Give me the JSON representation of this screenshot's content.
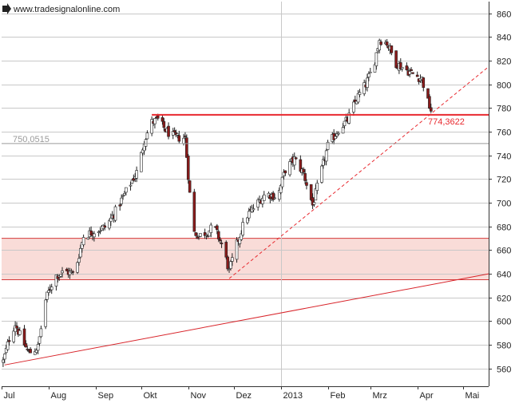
{
  "watermark": {
    "icon": "arrow-right-icon",
    "text": "www.tradesignalonline.com"
  },
  "chart_data": {
    "type": "candlestick",
    "ylim": [
      545,
      870
    ],
    "yticks": [
      560,
      580,
      600,
      620,
      640,
      660,
      680,
      700,
      720,
      740,
      760,
      780,
      800,
      820,
      840,
      860
    ],
    "x_start": "2012-07-01",
    "x_end": "2013-05-18",
    "month_ticks": [
      {
        "label": "Jul",
        "date": "2012-07-01"
      },
      {
        "label": "Aug",
        "date": "2012-08-01"
      },
      {
        "label": "Sep",
        "date": "2012-09-01"
      },
      {
        "label": "Okt",
        "date": "2012-10-01"
      },
      {
        "label": "Nov",
        "date": "2012-11-01"
      },
      {
        "label": "Dez",
        "date": "2012-12-01"
      },
      {
        "label": "2013",
        "date": "2013-01-01"
      },
      {
        "label": "Feb",
        "date": "2013-02-01"
      },
      {
        "label": "Mrz",
        "date": "2013-03-01"
      },
      {
        "label": "Apr",
        "date": "2013-04-01"
      },
      {
        "label": "Mai",
        "date": "2013-05-01"
      }
    ],
    "close_path": [
      [
        "2012-07-02",
        566
      ],
      [
        "2012-07-06",
        585
      ],
      [
        "2012-07-10",
        598
      ],
      [
        "2012-07-14",
        585
      ],
      [
        "2012-07-19",
        573
      ],
      [
        "2012-07-25",
        578
      ],
      [
        "2012-07-30",
        618
      ],
      [
        "2012-08-05",
        638
      ],
      [
        "2012-08-12",
        642
      ],
      [
        "2012-08-18",
        640
      ],
      [
        "2012-08-24",
        672
      ],
      [
        "2012-08-31",
        676
      ],
      [
        "2012-09-08",
        680
      ],
      [
        "2012-09-15",
        695
      ],
      [
        "2012-09-22",
        712
      ],
      [
        "2012-09-29",
        728
      ],
      [
        "2012-10-03",
        753
      ],
      [
        "2012-10-08",
        768
      ],
      [
        "2012-10-12",
        770
      ],
      [
        "2012-10-18",
        760
      ],
      [
        "2012-10-24",
        755
      ],
      [
        "2012-10-30",
        755
      ],
      [
        "2012-11-04",
        676
      ],
      [
        "2012-11-08",
        672
      ],
      [
        "2012-11-14",
        676
      ],
      [
        "2012-11-18",
        680
      ],
      [
        "2012-11-24",
        662
      ],
      [
        "2012-11-28",
        642
      ],
      [
        "2012-12-03",
        665
      ],
      [
        "2012-12-09",
        688
      ],
      [
        "2012-12-15",
        697
      ],
      [
        "2012-12-22",
        708
      ],
      [
        "2012-12-30",
        705
      ],
      [
        "2013-01-04",
        728
      ],
      [
        "2013-01-10",
        737
      ],
      [
        "2013-01-16",
        725
      ],
      [
        "2013-01-22",
        698
      ],
      [
        "2013-02-01",
        748
      ],
      [
        "2013-02-08",
        762
      ],
      [
        "2013-02-14",
        770
      ],
      [
        "2013-02-20",
        788
      ],
      [
        "2013-02-26",
        800
      ],
      [
        "2013-03-03",
        815
      ],
      [
        "2013-03-07",
        838
      ],
      [
        "2013-03-12",
        835
      ],
      [
        "2013-03-18",
        818
      ],
      [
        "2013-03-24",
        813
      ],
      [
        "2013-03-30",
        808
      ],
      [
        "2013-04-04",
        805
      ],
      [
        "2013-04-08",
        785
      ],
      [
        "2013-04-10",
        778
      ]
    ],
    "levels": [
      {
        "value": 774.3622,
        "label": "774,3622",
        "color": "#e8292f",
        "from": "2012-10-08"
      },
      {
        "value": 750.0515,
        "label": "750,0515",
        "color": "#9a9a9a",
        "from": "2012-07-01"
      }
    ],
    "zone": {
      "low": 635,
      "high": 670,
      "fill": "#f9dcd8",
      "line_color": "#d43a3a"
    },
    "trendlines": [
      {
        "style": "solid",
        "color": "#d8242a",
        "from": [
          "2012-07-03",
          563
        ],
        "to": [
          "2013-05-18",
          640
        ]
      },
      {
        "style": "dashed",
        "color": "#e8292f",
        "from": [
          "2012-11-28",
          636
        ],
        "to": [
          "2013-05-18",
          815
        ]
      }
    ],
    "colors": {
      "up": "#ffffff",
      "down": "#8b1a1a",
      "wick": "#222222",
      "grid": "#c8c8c8",
      "axis": "#333333"
    },
    "grid": true
  }
}
